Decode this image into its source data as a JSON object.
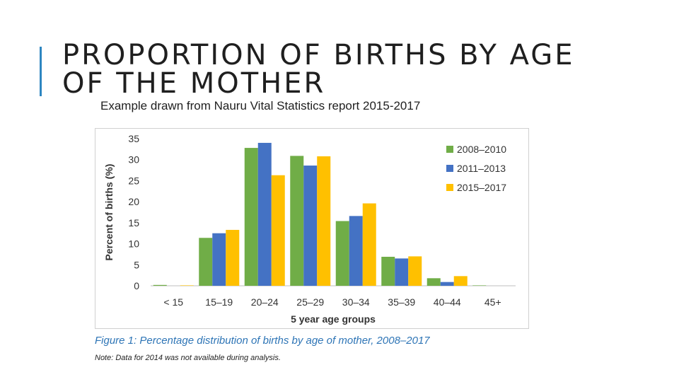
{
  "slide": {
    "title_line1": "PROPORTION OF BIRTHS BY AGE",
    "title_line2": "OF THE MOTHER",
    "subtitle": "Example drawn from Nauru Vital Statistics report 2015-2017",
    "caption": "Figure 1: Percentage distribution of births by age of mother, 2008–2017",
    "note": "Note: Data for 2014 was not available during analysis.",
    "accent_color": "#2e86c1"
  },
  "chart_data": {
    "type": "bar",
    "xlabel": "5 year age groups",
    "ylabel": "Percent of births (%)",
    "ylim": [
      0,
      35
    ],
    "yticks": [
      0,
      5,
      10,
      15,
      20,
      25,
      30,
      35
    ],
    "categories": [
      "< 15",
      "15–19",
      "20–24",
      "25–29",
      "30–34",
      "35–39",
      "40–44",
      "45+"
    ],
    "series": [
      {
        "name": "2008–2010",
        "color": "#70ad47",
        "values": [
          0.2,
          11.4,
          32.8,
          30.9,
          15.4,
          6.9,
          1.8,
          0.1
        ]
      },
      {
        "name": "2011–2013",
        "color": "#4472c4",
        "values": [
          0.0,
          12.5,
          34.0,
          28.6,
          16.6,
          6.5,
          0.9,
          0.0
        ]
      },
      {
        "name": "2015–2017",
        "color": "#ffc000",
        "values": [
          0.1,
          13.3,
          26.3,
          30.8,
          19.6,
          7.0,
          2.3,
          0.0
        ]
      }
    ],
    "legend_position": "top-right",
    "grid": false
  }
}
